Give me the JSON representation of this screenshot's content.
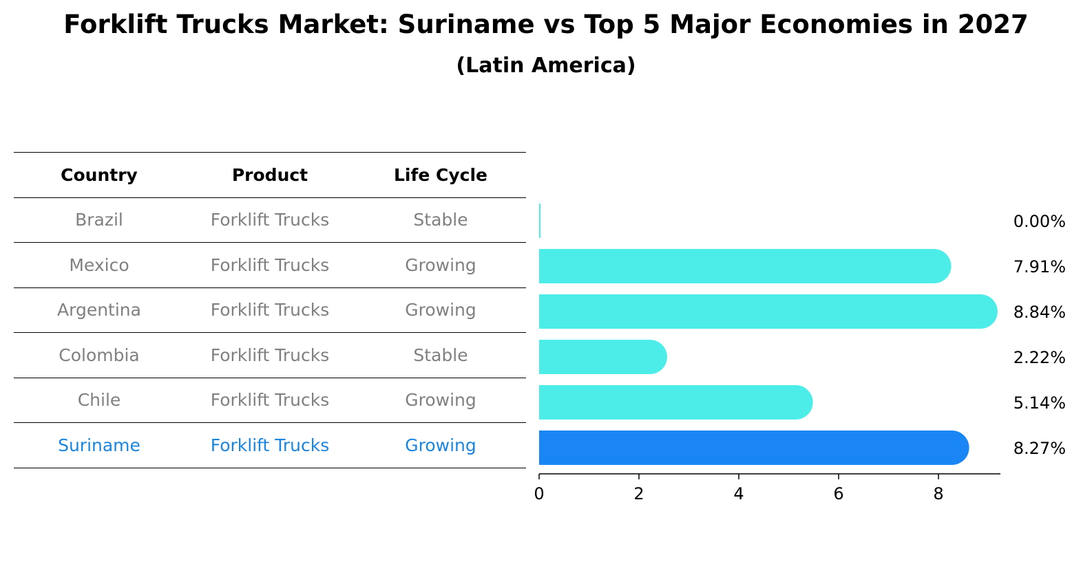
{
  "title": "Forklift Trucks Market: Suriname vs Top 5 Major Economies in 2027",
  "subtitle": "(Latin America)",
  "table": {
    "headers": [
      "Country",
      "Product",
      "Life Cycle"
    ],
    "rows": [
      {
        "country": "Brazil",
        "product": "Forklift Trucks",
        "life_cycle": "Stable"
      },
      {
        "country": "Mexico",
        "product": "Forklift Trucks",
        "life_cycle": "Growing"
      },
      {
        "country": "Argentina",
        "product": "Forklift Trucks",
        "life_cycle": "Growing"
      },
      {
        "country": "Colombia",
        "product": "Forklift Trucks",
        "life_cycle": "Stable"
      },
      {
        "country": "Chile",
        "product": "Forklift Trucks",
        "life_cycle": "Growing"
      },
      {
        "country": "Suriname",
        "product": "Forklift Trucks",
        "life_cycle": "Growing"
      }
    ]
  },
  "colors": {
    "bar": "#4cede9",
    "highlight_bar": "#1a85f5",
    "highlight_text": "#1a85e0",
    "muted_text": "#808080"
  },
  "chart_data": {
    "type": "bar",
    "orientation": "horizontal",
    "categories": [
      "Brazil",
      "Mexico",
      "Argentina",
      "Colombia",
      "Chile",
      "Suriname"
    ],
    "values": [
      0.0,
      7.91,
      8.84,
      2.22,
      5.14,
      8.27
    ],
    "value_labels": [
      "0.00%",
      "7.91%",
      "8.84%",
      "2.22%",
      "5.14%",
      "8.27%"
    ],
    "highlight": "Suriname",
    "xticks": [
      0,
      2,
      4,
      6,
      8
    ],
    "xlim": [
      0,
      9.2
    ],
    "xlabel": "",
    "ylabel": "",
    "grid": false
  }
}
